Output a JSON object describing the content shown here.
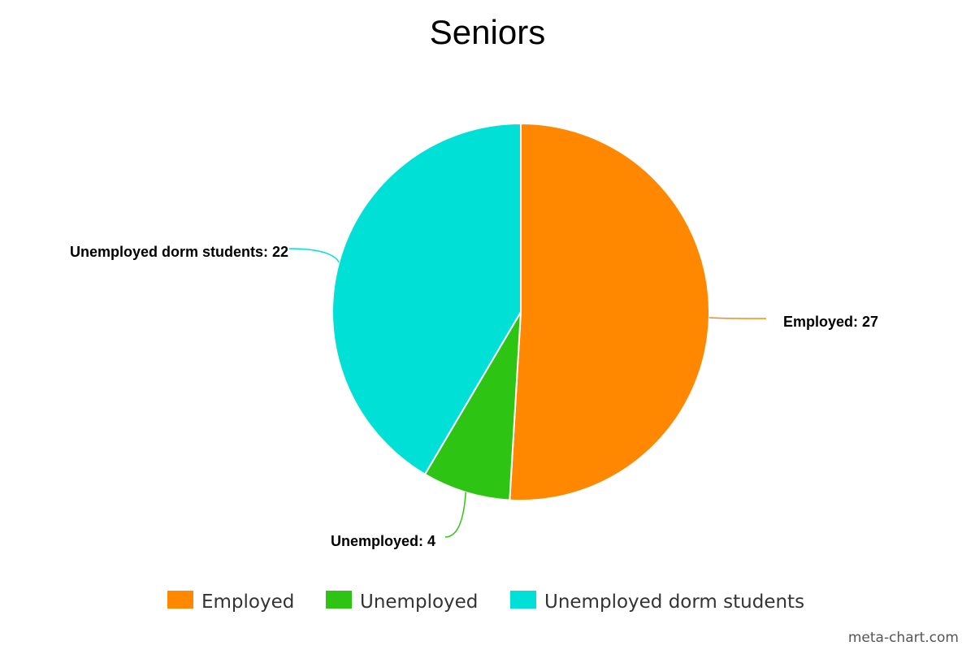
{
  "chart_data": {
    "type": "pie",
    "title": "Seniors",
    "categories": [
      "Employed",
      "Unemployed",
      "Unemployed dorm students"
    ],
    "values": [
      27,
      4,
      22
    ],
    "colors": [
      "#ff8800",
      "#2ec414",
      "#00e0d6"
    ],
    "data_labels": [
      "Employed: 27",
      "Unemployed: 4",
      "Unemployed dorm students: 22"
    ],
    "legend_position": "bottom",
    "start_angle": "top",
    "direction": "clockwise"
  },
  "credit": "meta-chart.com"
}
